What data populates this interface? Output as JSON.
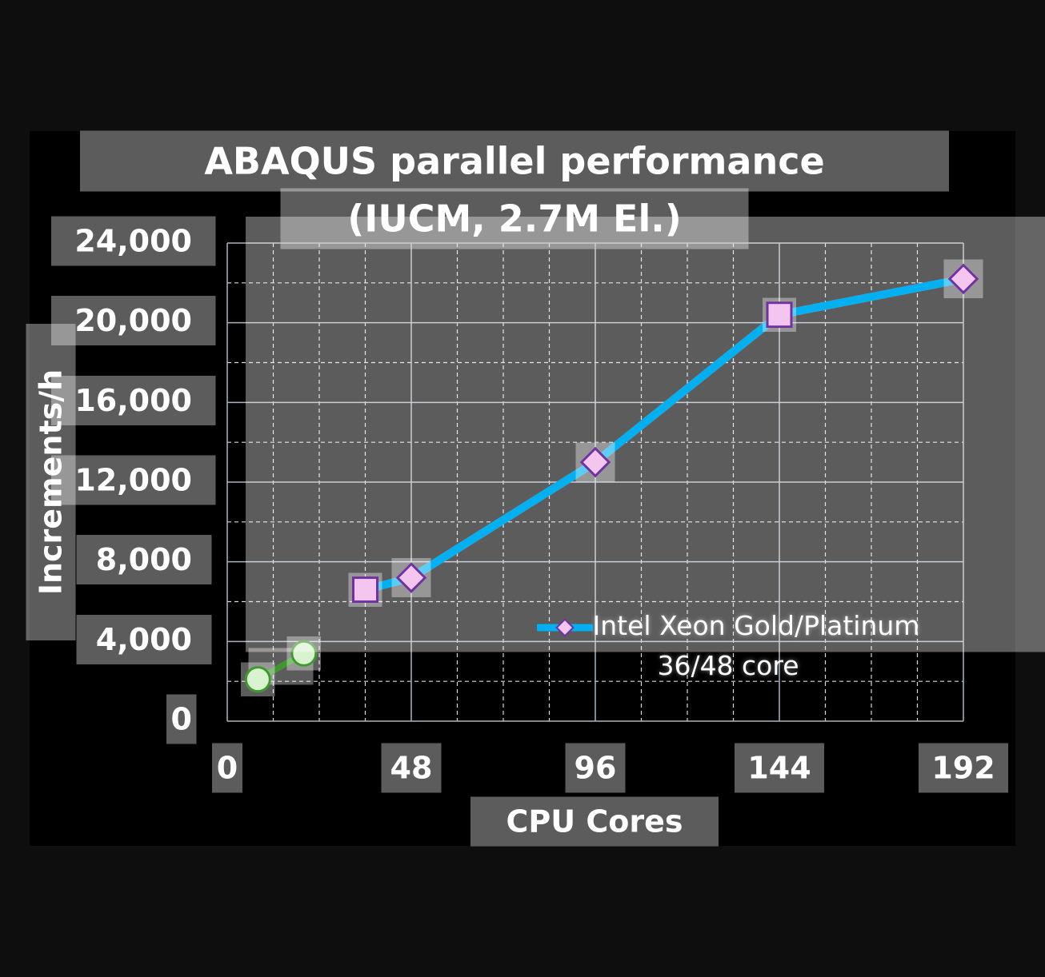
{
  "chart_data": {
    "type": "line",
    "title": [
      "ABAQUS parallel performance",
      "(IUCM, 2.7M El.)"
    ],
    "x_label": "CPU Cores",
    "y_label": "Increments/h",
    "series": [
      {
        "color": "#3c9a2c",
        "marker_fill": "#d9f2d0",
        "markers": [
          "circle",
          "circle"
        ],
        "x": [
          8,
          20
        ],
        "values": [
          2100,
          3400
        ]
      },
      {
        "name": "Intel Xeon Gold/Platinum 36/48 core",
        "color": "#00b0f0",
        "marker_fill": "#f4c6ef",
        "marker_stroke": "#7030a0",
        "markers": [
          "square",
          "diamond",
          "diamond",
          "square",
          "diamond"
        ],
        "x": [
          36,
          48,
          96,
          144,
          192
        ],
        "values": [
          6600,
          7200,
          13000,
          20400,
          22200
        ]
      }
    ],
    "xlim": [
      0,
      192
    ],
    "xticks": [
      0,
      48,
      96,
      144,
      192
    ],
    "xminorticks": [
      12,
      24,
      36,
      60,
      72,
      84,
      108,
      120,
      132,
      156,
      168,
      180
    ],
    "ylim": [
      0,
      24000
    ],
    "yticks": [
      0,
      {
        "value": 4000,
        "label": "4,000"
      },
      {
        "value": 8000,
        "label": "8,000"
      },
      {
        "value": 12000,
        "label": "12,000"
      },
      {
        "value": 16000,
        "label": "16,000"
      },
      {
        "value": 20000,
        "label": "20,000"
      },
      {
        "value": 24000,
        "label": "24,000"
      }
    ],
    "yminorticks": [
      2000,
      6000,
      10000,
      14000,
      18000,
      22000
    ],
    "grid": true,
    "legend": "lower right"
  }
}
